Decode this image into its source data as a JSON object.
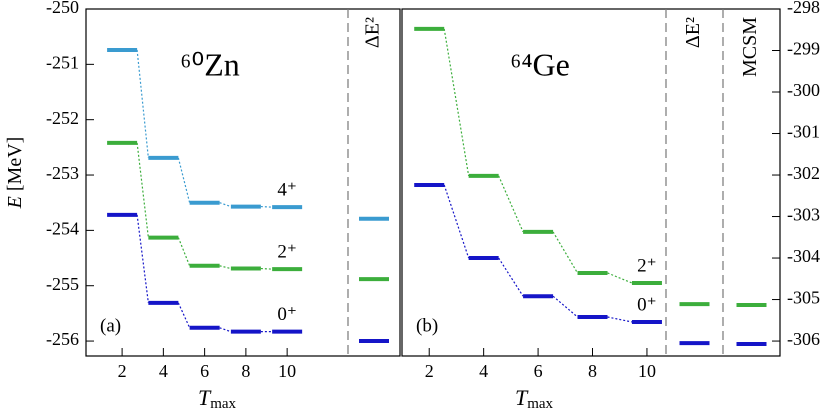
{
  "chart_data": [
    {
      "type": "level",
      "title": "⁶⁰Zn",
      "panel_label": "(a)",
      "y_label": "E [MeV]",
      "x_label": "Tmax",
      "y_axis_side": "left",
      "x": [
        2,
        4,
        6,
        8,
        10
      ],
      "xlim": [
        0.25,
        12.95
      ],
      "xticks": [
        2,
        4,
        6,
        8,
        10
      ],
      "ylim": [
        -256.27,
        -250
      ],
      "yticks": [
        -250,
        -251,
        -252,
        -253,
        -254,
        -255,
        -256
      ],
      "extra_columns": [
        "ΔE²"
      ],
      "series": [
        {
          "name": "4⁺",
          "color": "#3a9bd0",
          "values": [
            -250.74,
            -252.69,
            -253.5,
            -253.57,
            -253.58
          ],
          "extra_values": [
            -253.79
          ]
        },
        {
          "name": "2⁺",
          "color": "#3cae3c",
          "values": [
            -252.42,
            -254.13,
            -254.64,
            -254.69,
            -254.7
          ],
          "extra_values": [
            -254.88
          ]
        },
        {
          "name": "0⁺",
          "color": "#1515c8",
          "values": [
            -253.72,
            -255.31,
            -255.76,
            -255.83,
            -255.83
          ],
          "extra_values": [
            -256.0
          ]
        }
      ]
    },
    {
      "type": "level",
      "title": "⁶⁴Ge",
      "panel_label": "(b)",
      "x_label": "Tmax",
      "y_axis_side": "right",
      "x": [
        2,
        4,
        6,
        8,
        10
      ],
      "xlim": [
        1,
        10.7
      ],
      "xticks": [
        2,
        4,
        6,
        8,
        10
      ],
      "ylim": [
        -306.36,
        -298
      ],
      "yticks": [
        -298,
        -299,
        -300,
        -301,
        -302,
        -303,
        -304,
        -305,
        -306
      ],
      "extra_columns": [
        "ΔE²",
        "MCSM"
      ],
      "series": [
        {
          "name": "2⁺",
          "color": "#3cae3c",
          "values": [
            -298.48,
            -302.02,
            -303.37,
            -304.36,
            -304.6
          ],
          "extra_values": [
            -305.11,
            -305.13
          ]
        },
        {
          "name": "0⁺",
          "color": "#1515c8",
          "values": [
            -302.24,
            -304.0,
            -304.92,
            -305.42,
            -305.54
          ],
          "extra_values": [
            -306.05,
            -306.07
          ]
        }
      ]
    }
  ]
}
